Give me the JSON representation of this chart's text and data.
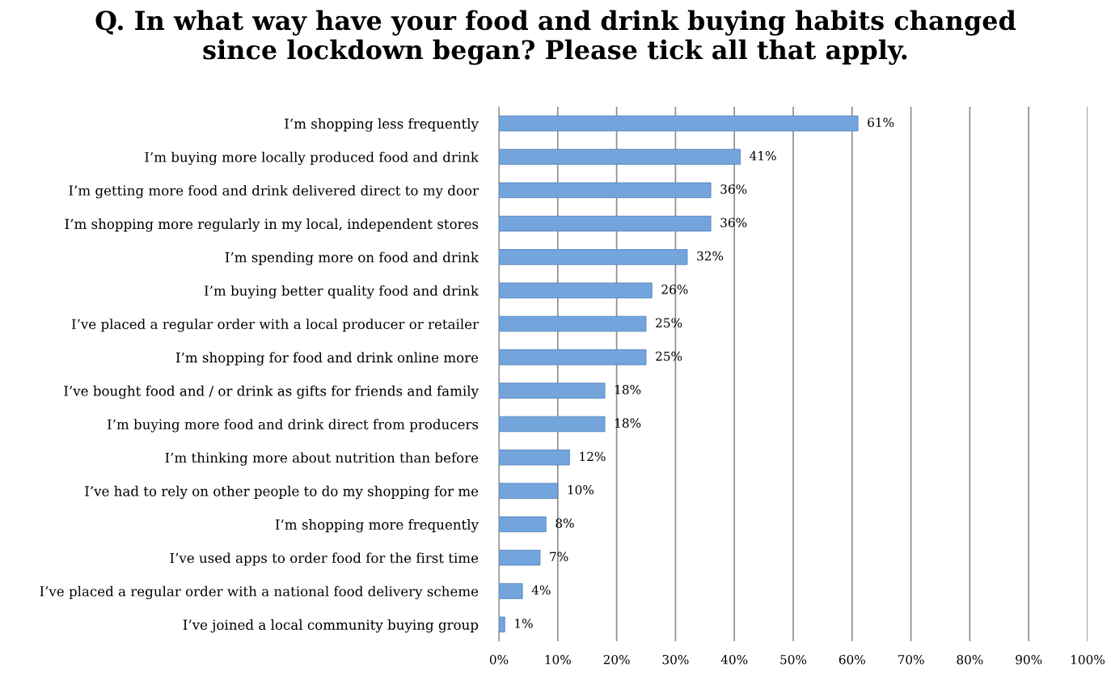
{
  "chart_data": {
    "type": "bar",
    "orientation": "horizontal",
    "title": "Q. In what way have your food and drink buying habits changed\nsince lockdown began? Please tick all that apply.",
    "categories": [
      "I’m shopping less frequently",
      "I’m buying more locally produced food and drink",
      "I’m getting more food and drink delivered direct to my door",
      "I’m shopping more regularly in my local, independent stores",
      "I’m spending more on food and drink",
      "I’m buying better quality food and drink",
      "I’ve placed a regular order with a local producer or retailer",
      "I’m shopping for food and drink online more",
      "I’ve bought food and / or drink as gifts for friends and family",
      "I’m buying more food and drink direct from producers",
      "I’m thinking more about nutrition than before",
      "I’ve had to rely on other people to do my shopping for me",
      "I’m shopping more frequently",
      "I’ve used apps to order food for the first time",
      "I’ve placed a regular order with a national food delivery scheme",
      "I’ve joined a local community buying group"
    ],
    "values": [
      61,
      41,
      36,
      36,
      32,
      26,
      25,
      25,
      18,
      18,
      12,
      10,
      8,
      7,
      4,
      1
    ],
    "value_labels": [
      "61%",
      "41%",
      "36%",
      "36%",
      "32%",
      "26%",
      "25%",
      "25%",
      "18%",
      "18%",
      "12%",
      "10%",
      "8%",
      "7%",
      "4%",
      "1%"
    ],
    "color": "#73a5dc",
    "xlim": [
      0,
      100
    ],
    "xticks": [
      {
        "value": 0,
        "label": "0%"
      },
      {
        "value": 10,
        "label": "10%"
      },
      {
        "value": 20,
        "label": "20%"
      },
      {
        "value": 30,
        "label": "30%"
      },
      {
        "value": 40,
        "label": "40%"
      },
      {
        "value": 50,
        "label": "50%"
      },
      {
        "value": 60,
        "label": "60%"
      },
      {
        "value": 70,
        "label": "70%"
      },
      {
        "value": 80,
        "label": "80%"
      },
      {
        "value": 90,
        "label": "90%"
      },
      {
        "value": 100,
        "label": "100%"
      }
    ],
    "grid": "x",
    "legend": false
  }
}
